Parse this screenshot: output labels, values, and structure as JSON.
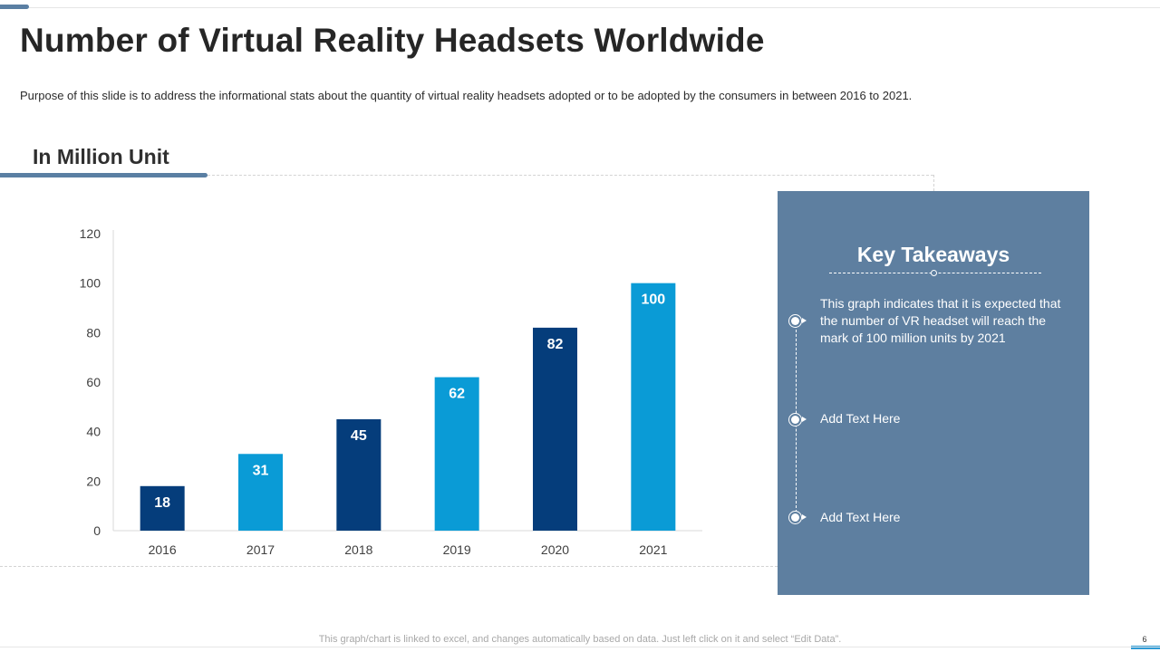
{
  "slide": {
    "title": "Number of Virtual Reality Headsets Worldwide",
    "subtitle": "Purpose of this slide is to address the informational stats about the quantity of virtual reality headsets adopted or to be adopted by the consumers in between 2016 to 2021.",
    "section_title": "In Million Unit",
    "footer_note": "This graph/chart is linked to excel, and changes automatically based on data. Just left click on it and select “Edit Data”.",
    "page_number": "6"
  },
  "takeaways": {
    "title": "Key Takeaways",
    "items": [
      "This graph indicates that it is expected that the number of VR headset will reach the mark of 100 million units by 2021",
      "Add Text Here",
      "Add Text Here"
    ]
  },
  "colors": {
    "dark_bar": "#053d7b",
    "light_bar": "#0a9bd6",
    "panel": "#5e7fa0",
    "accent": "#5a7fa3"
  },
  "chart_data": {
    "type": "bar",
    "categories": [
      "2016",
      "2017",
      "2018",
      "2019",
      "2020",
      "2021"
    ],
    "values": [
      18,
      31,
      45,
      62,
      82,
      100
    ],
    "yticks": [
      "0",
      "20",
      "40",
      "60",
      "80",
      "100",
      "120"
    ],
    "ylim": [
      0,
      120
    ],
    "title": "",
    "xlabel": "",
    "ylabel": "",
    "grid": false,
    "legend": "none"
  }
}
